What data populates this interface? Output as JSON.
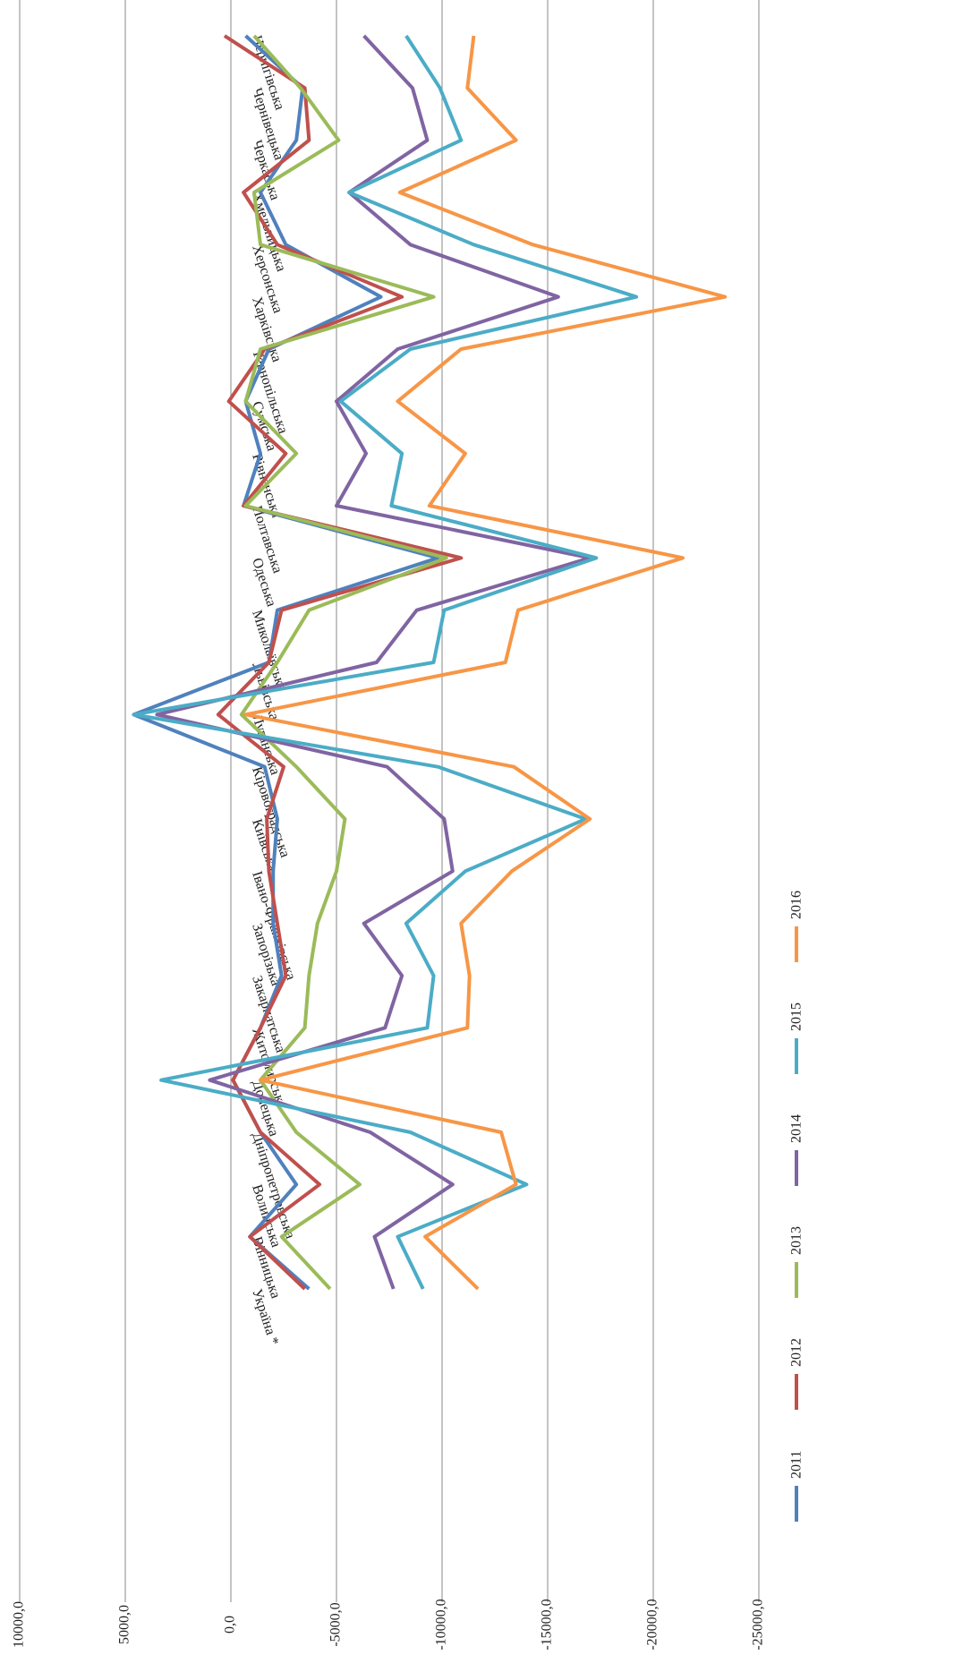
{
  "chart_data": {
    "type": "line",
    "orientation": "rotated",
    "categories": [
      "Україна *",
      "Вінницька",
      "Волинська",
      "Дніпропетровська",
      "Донецька",
      "Житомирська",
      "Закарпатська",
      "Запорізька",
      "Івано-Франківська",
      "Київська",
      "Кіровоградська",
      "Луганська",
      "Львівська",
      "Миколаївська",
      "Одеська",
      "Полтавська",
      "Рівненська",
      "Сумська",
      "Тернопільська",
      "Харківська",
      "Херсонська",
      "Хмельницька",
      "Черкаська",
      "Чернівецька",
      "Чернігівська"
    ],
    "series": [
      {
        "name": "2011",
        "color": "#4f81bd",
        "values": [
          -3700,
          -900,
          -3100,
          -1400,
          -100,
          -1400,
          -2400,
          -2000,
          -2000,
          -2200,
          -1600,
          4600,
          -1800,
          -2200,
          -9800,
          -600,
          -1400,
          -700,
          -1800,
          -7100,
          -2600,
          -1400,
          -3100,
          -3400,
          -700
        ]
      },
      {
        "name": "2012",
        "color": "#c0504d",
        "values": [
          -3500,
          -900,
          -4200,
          -1400,
          -100,
          -1400,
          -2600,
          -2200,
          -1800,
          -1700,
          -2500,
          600,
          -1800,
          -2400,
          -10900,
          -600,
          -2600,
          100,
          -1600,
          -8100,
          -2200,
          -600,
          -3700,
          -3500,
          300
        ]
      },
      {
        "name": "2013",
        "color": "#9bbb59",
        "values": [
          -4700,
          -2400,
          -6100,
          -3100,
          -1400,
          -3500,
          -3700,
          -4100,
          -5000,
          -5400,
          -3100,
          -500,
          -2200,
          -3700,
          -10200,
          -700,
          -3100,
          -700,
          -1400,
          -9600,
          -1400,
          -1100,
          -5100,
          -3300,
          -1100
        ]
      },
      {
        "name": "2014",
        "color": "#8064a2",
        "values": [
          -7700,
          -6800,
          -10500,
          -6600,
          1000,
          -7300,
          -8100,
          -6300,
          -10500,
          -10100,
          -7400,
          3500,
          -6900,
          -8800,
          -17000,
          -5000,
          -6400,
          -5000,
          -7900,
          -15500,
          -8500,
          -5600,
          -9300,
          -8600,
          -6300
        ]
      },
      {
        "name": "2015",
        "color": "#4bacc6",
        "values": [
          -9100,
          -7900,
          -14000,
          -8500,
          3300,
          -9300,
          -9600,
          -8300,
          -11100,
          -16800,
          -9800,
          4600,
          -9600,
          -10100,
          -17300,
          -7600,
          -8100,
          -5200,
          -8500,
          -19200,
          -11500,
          -5600,
          -10900,
          -9900,
          -8300
        ]
      },
      {
        "name": "2016",
        "color": "#f79646",
        "values": [
          -11700,
          -9200,
          -13500,
          -12800,
          -1400,
          -11200,
          -11300,
          -10900,
          -13300,
          -17000,
          -13400,
          -700,
          -13000,
          -13600,
          -21400,
          -9400,
          -11100,
          -7900,
          -10900,
          -23400,
          -14300,
          -8000,
          -13500,
          -11200,
          -11500
        ]
      }
    ],
    "ylim": [
      -25000,
      10000
    ],
    "yticks": [
      {
        "value": 10000,
        "label": "10000,0"
      },
      {
        "value": 5000,
        "label": "5000,0"
      },
      {
        "value": 0,
        "label": "0,0"
      },
      {
        "value": -5000,
        "label": "-5000,0"
      },
      {
        "value": -10000,
        "label": "-10000,0"
      },
      {
        "value": -15000,
        "label": "-15000,0"
      },
      {
        "value": -20000,
        "label": "-20000,0"
      },
      {
        "value": -25000,
        "label": "-25000,0"
      }
    ],
    "grid": true
  }
}
